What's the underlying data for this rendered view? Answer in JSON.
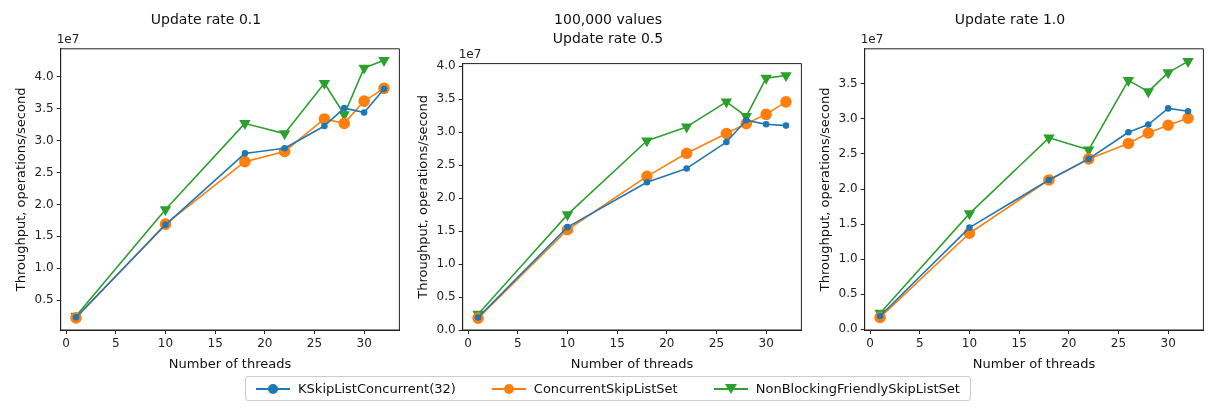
{
  "chart_data": [
    {
      "type": "line",
      "title": "Update rate 0.1",
      "xlabel": "Number of threads",
      "ylabel": "Throughput, operations/second",
      "annotations": [
        "1e7"
      ],
      "x": [
        1,
        10,
        18,
        22,
        26,
        28,
        30,
        32
      ],
      "series": [
        {
          "color": "#1f77b4",
          "marker": "circle",
          "values": [
            0.23,
            1.68,
            2.8,
            2.88,
            3.23,
            3.51,
            3.44,
            3.81
          ]
        },
        {
          "color": "#ff7f0e",
          "marker": "circle",
          "values": [
            0.22,
            1.69,
            2.67,
            2.83,
            3.34,
            3.27,
            3.62,
            3.82
          ]
        },
        {
          "color": "#2ca02c",
          "marker": "triangle",
          "values": [
            0.25,
            1.92,
            3.27,
            3.11,
            3.9,
            3.41,
            4.14,
            4.26
          ]
        }
      ],
      "xlim": [
        -0.55,
        33.55
      ],
      "xticks": [
        0,
        5,
        10,
        15,
        20,
        25,
        30
      ],
      "ylim": [
        0.03,
        4.44
      ],
      "yticks": [
        0.5,
        {
          "value": 1,
          "label": "1.0"
        },
        1.5,
        {
          "value": 2,
          "label": "2.0"
        },
        2.5,
        {
          "value": 3,
          "label": "3.0"
        },
        3.5,
        {
          "value": 4,
          "label": "4.0"
        }
      ],
      "grid": false
    },
    {
      "type": "line",
      "title": "100,000 values",
      "subtitle": "Update rate 0.5",
      "xlabel": "Number of threads",
      "ylabel": "Throughput, operations/second",
      "annotations": [
        "1e7"
      ],
      "x": [
        1,
        10,
        18,
        22,
        26,
        28,
        30,
        32
      ],
      "series": [
        {
          "name": "KSkipListConcurrent(32)",
          "color": "#1f77b4",
          "marker": "circle",
          "values": [
            0.19,
            1.56,
            2.24,
            2.45,
            2.85,
            3.18,
            3.12,
            3.1
          ]
        },
        {
          "name": "ConcurrentSkipListSet",
          "color": "#ff7f0e",
          "marker": "circle",
          "values": [
            0.18,
            1.52,
            2.33,
            2.68,
            2.98,
            3.13,
            3.27,
            3.46
          ]
        },
        {
          "name": "NonBlockingFriendlySkipListSet",
          "color": "#2ca02c",
          "marker": "triangle",
          "values": [
            0.24,
            1.75,
            2.87,
            3.08,
            3.46,
            3.24,
            3.82,
            3.86
          ]
        }
      ],
      "xlim": [
        -0.55,
        33.55
      ],
      "xticks": [
        0,
        5,
        10,
        15,
        20,
        25,
        30
      ],
      "ylim": [
        0,
        4.04
      ],
      "yticks": [
        {
          "value": 0,
          "label": "0.0"
        },
        0.5,
        {
          "value": 1,
          "label": "1.0"
        },
        1.5,
        {
          "value": 2,
          "label": "2.0"
        },
        2.5,
        {
          "value": 3,
          "label": "3.0"
        },
        3.5,
        {
          "value": 4,
          "label": "4.0"
        }
      ],
      "grid": false,
      "legend": "bottom"
    },
    {
      "type": "line",
      "title": "Update rate 1.0",
      "xlabel": "Number of threads",
      "ylabel": "Throughput, operations/second",
      "annotations": [
        "1e7"
      ],
      "x": [
        1,
        10,
        18,
        22,
        26,
        28,
        30,
        32
      ],
      "series": [
        {
          "color": "#1f77b4",
          "marker": "circle",
          "values": [
            0.19,
            1.45,
            2.13,
            2.43,
            2.81,
            2.92,
            3.15,
            3.11
          ]
        },
        {
          "color": "#ff7f0e",
          "marker": "circle",
          "values": [
            0.17,
            1.37,
            2.13,
            2.43,
            2.65,
            2.8,
            2.91,
            3.01
          ]
        },
        {
          "color": "#2ca02c",
          "marker": "triangle",
          "values": [
            0.23,
            1.65,
            2.73,
            2.56,
            3.55,
            3.39,
            3.66,
            3.82
          ]
        }
      ],
      "xlim": [
        -0.55,
        33.55
      ],
      "xticks": [
        0,
        5,
        10,
        15,
        20,
        25,
        30
      ],
      "ylim": [
        -0.01,
        4.0
      ],
      "yticks": [
        {
          "value": 0,
          "label": "0.0"
        },
        0.5,
        {
          "value": 1,
          "label": "1.0"
        },
        1.5,
        {
          "value": 2,
          "label": "2.0"
        },
        2.5,
        {
          "value": 3,
          "label": "3.0"
        },
        3.5
      ],
      "grid": false
    }
  ]
}
